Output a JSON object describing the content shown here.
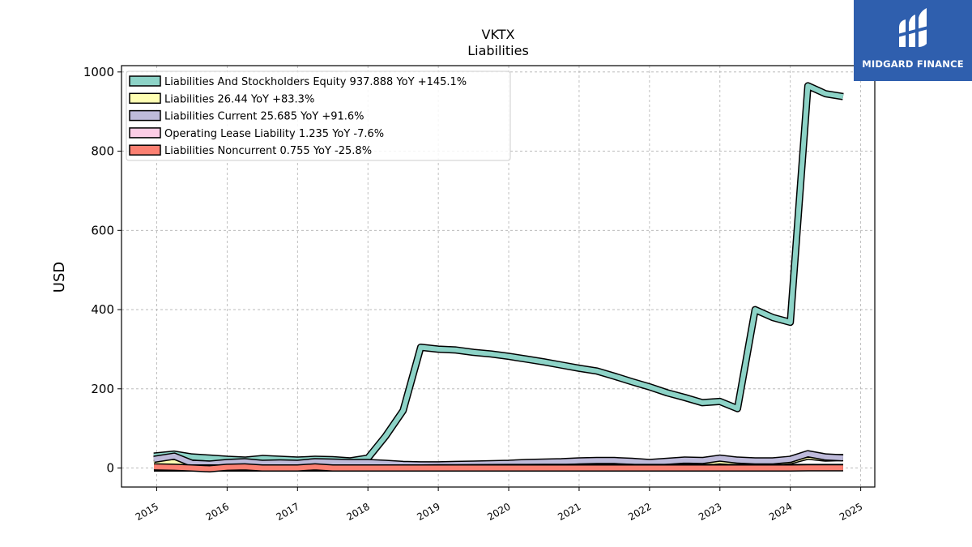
{
  "brand": {
    "name": "MIDGARD FINANCE",
    "background": "#2f5fae"
  },
  "chart_data": {
    "type": "line",
    "title": "VKTX",
    "subtitle": "Liabilities",
    "ylabel": "USD",
    "xlabel": "",
    "ylim": [
      -48,
      1016
    ],
    "xlim": [
      2014.5,
      2025.2
    ],
    "yticks": [
      0,
      200,
      400,
      600,
      800,
      1000
    ],
    "xticks": [
      "2015",
      "2016",
      "2017",
      "2018",
      "2019",
      "2020",
      "2021",
      "2022",
      "2023",
      "2024",
      "2025"
    ],
    "grid": true,
    "legend_position": "top-left",
    "series": [
      {
        "name": "Liabilities And Stockholders Equity",
        "label": "Liabilities And Stockholders Equity  937.888 YoY +145.1%",
        "color": "#8dd3c7",
        "x": [
          2014.96,
          2015.25,
          2015.5,
          2015.75,
          2016.0,
          2016.25,
          2016.5,
          2016.75,
          2017.0,
          2017.25,
          2017.5,
          2017.75,
          2018.0,
          2018.25,
          2018.5,
          2018.75,
          2019.0,
          2019.25,
          2019.5,
          2019.75,
          2020.0,
          2020.25,
          2020.5,
          2020.75,
          2021.0,
          2021.25,
          2021.5,
          2021.75,
          2022.0,
          2022.25,
          2022.5,
          2022.75,
          2023.0,
          2023.25,
          2023.5,
          2023.75,
          2024.0,
          2024.25,
          2024.5,
          2024.75
        ],
        "values": [
          30,
          35,
          28,
          25,
          22,
          20,
          24,
          22,
          20,
          22,
          21,
          18,
          25,
          80,
          145,
          305,
          300,
          298,
          292,
          288,
          282,
          275,
          268,
          260,
          252,
          245,
          232,
          218,
          205,
          190,
          178,
          165,
          168,
          150,
          400,
          380,
          368,
          965,
          945,
          937.888
        ]
      },
      {
        "name": "Liabilities",
        "label": "Liabilities  26.44 YoY +83.3%",
        "color": "#ffffb3",
        "x": [
          2014.96,
          2015.25,
          2015.5,
          2015.75,
          2016.0,
          2016.25,
          2016.5,
          2016.75,
          2017.0,
          2017.25,
          2017.5,
          2017.75,
          2018.0,
          2018.25,
          2018.5,
          2018.75,
          2019.0,
          2019.25,
          2019.5,
          2019.75,
          2020.0,
          2020.25,
          2020.5,
          2020.75,
          2021.0,
          2021.25,
          2021.5,
          2021.75,
          2022.0,
          2022.25,
          2022.5,
          2022.75,
          2023.0,
          2023.25,
          2023.5,
          2023.75,
          2024.0,
          2024.25,
          2024.5,
          2024.75
        ],
        "values": [
          12,
          16,
          8,
          7,
          10,
          11,
          9,
          9,
          8,
          10,
          9,
          8,
          8,
          7,
          6,
          6,
          6,
          7,
          7,
          8,
          8,
          9,
          10,
          10,
          11,
          12,
          12,
          11,
          10,
          12,
          14,
          13,
          18,
          15,
          14,
          14,
          18,
          30,
          25,
          26.44
        ]
      },
      {
        "name": "Liabilities Current",
        "label": "Liabilities Current  25.685 YoY +91.6%",
        "color": "#bebada",
        "x": [
          2014.96,
          2015.25,
          2015.5,
          2015.75,
          2016.0,
          2016.25,
          2016.5,
          2016.75,
          2017.0,
          2017.25,
          2017.5,
          2017.75,
          2018.0,
          2018.25,
          2018.5,
          2018.75,
          2019.0,
          2019.25,
          2019.5,
          2019.75,
          2020.0,
          2020.25,
          2020.5,
          2020.75,
          2021.0,
          2021.25,
          2021.5,
          2021.75,
          2022.0,
          2022.25,
          2022.5,
          2022.75,
          2023.0,
          2023.25,
          2023.5,
          2023.75,
          2024.0,
          2024.25,
          2024.5,
          2024.75
        ],
        "values": [
          22,
          30,
          12,
          10,
          14,
          16,
          12,
          13,
          12,
          16,
          15,
          14,
          14,
          12,
          9,
          8,
          8,
          9,
          10,
          11,
          12,
          14,
          15,
          16,
          18,
          19,
          19,
          17,
          14,
          17,
          20,
          19,
          25,
          20,
          18,
          18,
          22,
          36,
          28,
          25.685
        ]
      },
      {
        "name": "Operating Lease Liability",
        "label": "Operating Lease Liability  1.235 YoY -7.6%",
        "color": "#fccde5",
        "x": [
          2014.96,
          2015.25,
          2015.5,
          2015.75,
          2016.0,
          2016.25,
          2016.5,
          2016.75,
          2017.0,
          2017.25,
          2017.5,
          2017.75,
          2018.0,
          2018.25,
          2018.5,
          2018.75,
          2019.0,
          2019.25,
          2019.5,
          2019.75,
          2020.0,
          2020.25,
          2020.5,
          2020.75,
          2021.0,
          2021.25,
          2021.5,
          2021.75,
          2022.0,
          2022.25,
          2022.5,
          2022.75,
          2023.0,
          2023.25,
          2023.5,
          2023.75,
          2024.0,
          2024.25,
          2024.5,
          2024.75
        ],
        "values": [
          0,
          0,
          0,
          0,
          0,
          0,
          0,
          0,
          0,
          0,
          0,
          0,
          0,
          0,
          0,
          0,
          0.5,
          0.8,
          1.0,
          1.2,
          1.3,
          1.4,
          1.5,
          1.5,
          1.5,
          1.4,
          1.4,
          1.3,
          1.3,
          1.3,
          1.3,
          1.3,
          1.3,
          1.3,
          1.3,
          1.3,
          1.3,
          1.3,
          1.25,
          1.235
        ]
      },
      {
        "name": "Liabilities Noncurrent",
        "label": "Liabilities Noncurrent  0.755 YoY -25.8%",
        "color": "#fb8072",
        "x": [
          2014.96,
          2015.25,
          2015.5,
          2015.75,
          2016.0,
          2016.25,
          2016.5,
          2016.75,
          2017.0,
          2017.25,
          2017.5,
          2017.75,
          2018.0,
          2018.25,
          2018.5,
          2018.75,
          2019.0,
          2019.25,
          2019.5,
          2019.75,
          2020.0,
          2020.25,
          2020.5,
          2020.75,
          2021.0,
          2021.25,
          2021.5,
          2021.75,
          2022.0,
          2022.25,
          2022.5,
          2022.75,
          2023.0,
          2023.25,
          2023.5,
          2023.75,
          2024.0,
          2024.25,
          2024.5,
          2024.75
        ],
        "values": [
          3,
          2,
          0,
          -2,
          2,
          3,
          0,
          0,
          0,
          3,
          0,
          0,
          0,
          0,
          0,
          0,
          0,
          0,
          0,
          0,
          0,
          0,
          0,
          0,
          0,
          0,
          0,
          0,
          0,
          0,
          0,
          0,
          0,
          0,
          0,
          0,
          0,
          0.5,
          0.7,
          0.755
        ]
      }
    ]
  }
}
